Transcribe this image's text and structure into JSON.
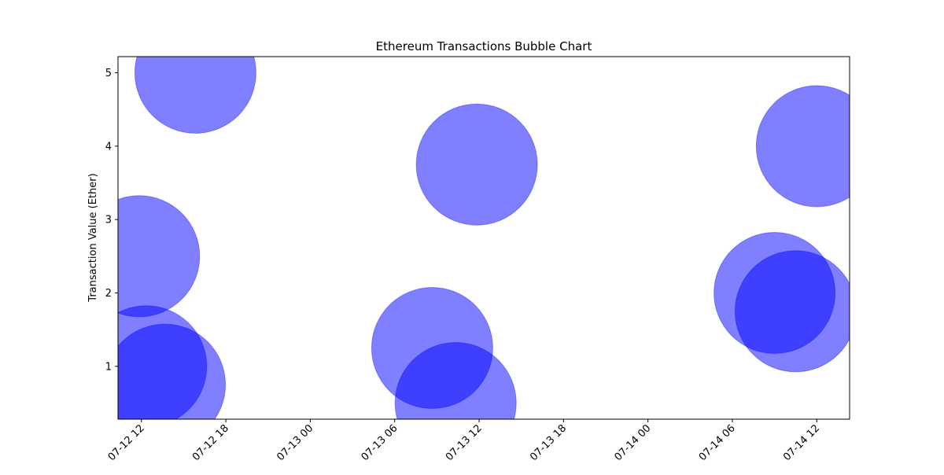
{
  "chart_data": {
    "type": "scatter",
    "title": "Ethereum Transactions Bubble Chart",
    "xlabel": "",
    "ylabel": "Transaction Value (Ether)",
    "x_tick_labels": [
      "07-12 12",
      "07-12 18",
      "07-13 00",
      "07-13 06",
      "07-13 12",
      "07-13 18",
      "07-14 00",
      "07-14 06",
      "07-14 12"
    ],
    "y_tick_labels": [
      "1",
      "2",
      "3",
      "4",
      "5"
    ],
    "y_ticks": [
      1,
      2,
      3,
      4,
      5
    ],
    "xlim": [
      "2023-07-12T10:20",
      "2023-07-14T14:20"
    ],
    "ylim": [
      0.28,
      5.22
    ],
    "grid": false,
    "bubble_color": "#0000ff",
    "bubble_opacity": 0.5,
    "points": [
      {
        "x": "2023-07-12T12:20",
        "y": 1.0
      },
      {
        "x": "2023-07-12T13:40",
        "y": 0.75
      },
      {
        "x": "2023-07-12T11:50",
        "y": 2.5
      },
      {
        "x": "2023-07-12T15:50",
        "y": 5.0
      },
      {
        "x": "2023-07-13T08:40",
        "y": 1.25
      },
      {
        "x": "2023-07-13T10:20",
        "y": 0.5
      },
      {
        "x": "2023-07-13T11:50",
        "y": 3.75
      },
      {
        "x": "2023-07-14T09:00",
        "y": 2.0
      },
      {
        "x": "2023-07-14T10:30",
        "y": 1.75
      },
      {
        "x": "2023-07-14T12:00",
        "y": 4.0
      }
    ]
  }
}
